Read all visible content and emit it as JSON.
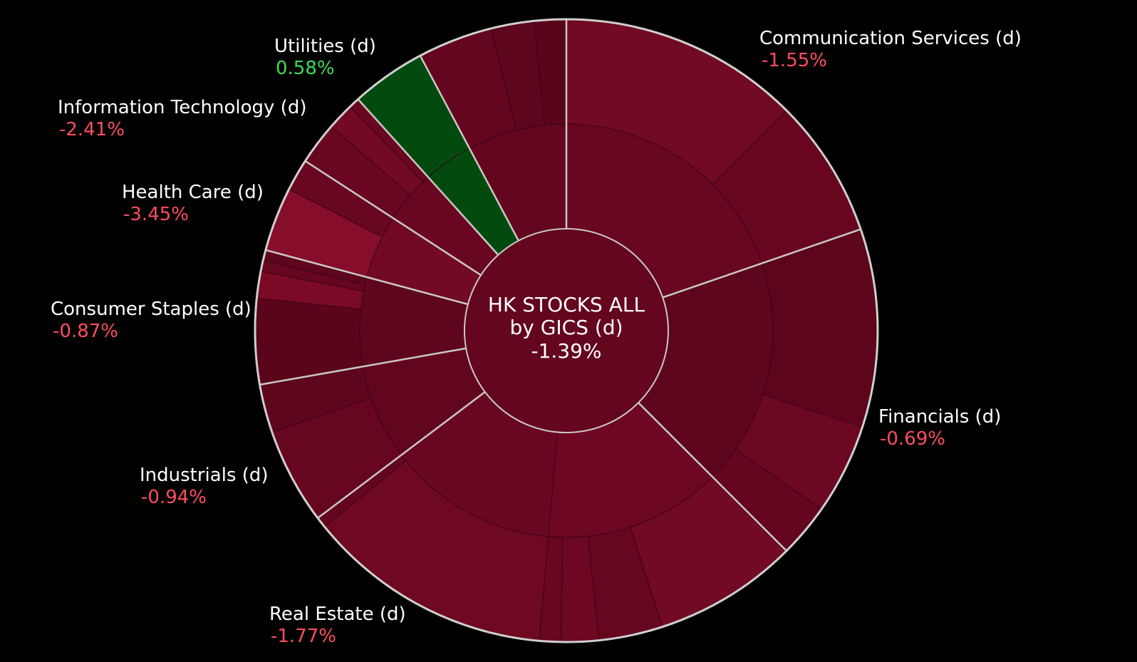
{
  "chart_data": {
    "type": "sunburst",
    "center": {
      "line1": "HK STOCKS ALL",
      "line2": "by GICS (d)",
      "value": "-1.39%"
    },
    "colors": {
      "background": "#000000",
      "negative_text": "#ff4d5e",
      "positive_text": "#3ddc5a",
      "center_fill": "#64061e",
      "separator": "#c8c8c8",
      "outer_ring": "#cfcfcf"
    },
    "sectors": [
      {
        "name": "Communication Services (d)",
        "pct": "-1.55%",
        "change": -1.55,
        "start_deg": 0,
        "end_deg": 71,
        "label_side": "right",
        "color": "#690720",
        "mid_color": "#6a0720",
        "mid": [
          {
            "start_deg": 0,
            "end_deg": 71,
            "color": "#6a0720"
          }
        ],
        "outer": [
          {
            "start_deg": 0,
            "end_deg": 45,
            "color": "#710a22"
          },
          {
            "start_deg": 45,
            "end_deg": 71,
            "color": "#68061f"
          }
        ]
      },
      {
        "name": "Financials (d)",
        "pct": "-0.69%",
        "change": -0.69,
        "start_deg": 71,
        "end_deg": 135,
        "label_side": "right",
        "color": "#5e061c",
        "mid_color": "#5e061c",
        "mid": [
          {
            "start_deg": 71,
            "end_deg": 135,
            "color": "#5e061c"
          }
        ],
        "outer": [
          {
            "start_deg": 71,
            "end_deg": 108,
            "color": "#5c051b"
          },
          {
            "start_deg": 108,
            "end_deg": 125,
            "color": "#6c0821"
          },
          {
            "start_deg": 125,
            "end_deg": 135,
            "color": "#64061e"
          }
        ]
      },
      {
        "name": "Real Estate (d)",
        "pct": "-1.77%",
        "change": -1.77,
        "start_deg": 135,
        "end_deg": 233,
        "label_side": "bottom",
        "color": "#6c0821",
        "mid_color": "#6c0821",
        "mid": [
          {
            "start_deg": 135,
            "end_deg": 185,
            "color": "#6e0822"
          },
          {
            "start_deg": 185,
            "end_deg": 233,
            "color": "#690720"
          }
        ],
        "outer": [
          {
            "start_deg": 135,
            "end_deg": 162,
            "color": "#710a22"
          },
          {
            "start_deg": 162,
            "end_deg": 174,
            "color": "#66061f"
          },
          {
            "start_deg": 174,
            "end_deg": 181,
            "color": "#6e0822"
          },
          {
            "start_deg": 181,
            "end_deg": 185,
            "color": "#690720"
          },
          {
            "start_deg": 185,
            "end_deg": 231,
            "color": "#6f0922"
          },
          {
            "start_deg": 231,
            "end_deg": 233,
            "color": "#64061e"
          }
        ]
      },
      {
        "name": "Industrials (d)",
        "pct": "-0.94%",
        "change": -0.94,
        "start_deg": 233,
        "end_deg": 260,
        "label_side": "left",
        "color": "#62061e",
        "mid_color": "#62061e",
        "mid": [
          {
            "start_deg": 233,
            "end_deg": 260,
            "color": "#62061e"
          }
        ],
        "outer": [
          {
            "start_deg": 233,
            "end_deg": 251,
            "color": "#66061f"
          },
          {
            "start_deg": 251,
            "end_deg": 260,
            "color": "#5e061c"
          }
        ]
      },
      {
        "name": "Consumer Staples (d)",
        "pct": "-0.87%",
        "change": -0.87,
        "start_deg": 260,
        "end_deg": 285,
        "label_side": "left",
        "color": "#5e061c",
        "mid_color": "#5e061c",
        "mid": [
          {
            "start_deg": 260,
            "end_deg": 285,
            "color": "#5e061c"
          }
        ],
        "outer": [
          {
            "start_deg": 260,
            "end_deg": 276,
            "color": "#5a051a"
          },
          {
            "start_deg": 276,
            "end_deg": 281,
            "color": "#7a0a25"
          },
          {
            "start_deg": 281,
            "end_deg": 283,
            "color": "#66061f"
          },
          {
            "start_deg": 283,
            "end_deg": 285,
            "color": "#5e061c"
          }
        ]
      },
      {
        "name": "Health Care (d)",
        "pct": "-3.45%",
        "change": -3.45,
        "start_deg": 285,
        "end_deg": 303,
        "label_side": "left",
        "color": "#730a23",
        "mid_color": "#730a23",
        "mid": [
          {
            "start_deg": 285,
            "end_deg": 303,
            "color": "#730a23"
          }
        ],
        "outer": [
          {
            "start_deg": 285,
            "end_deg": 297,
            "color": "#860e2a"
          },
          {
            "start_deg": 297,
            "end_deg": 303,
            "color": "#6a0720"
          }
        ]
      },
      {
        "name": "Information Technology (d)",
        "pct": "-2.41%",
        "change": -2.41,
        "start_deg": 303,
        "end_deg": 318,
        "label_side": "left",
        "color": "#6a0720",
        "mid_color": "#6a0720",
        "mid": [
          {
            "start_deg": 303,
            "end_deg": 318,
            "color": "#6a0720"
          }
        ],
        "outer": [
          {
            "start_deg": 303,
            "end_deg": 311,
            "color": "#690720"
          },
          {
            "start_deg": 311,
            "end_deg": 316,
            "color": "#730a23"
          },
          {
            "start_deg": 316,
            "end_deg": 318,
            "color": "#690720"
          }
        ]
      },
      {
        "name": "Utilities (d)",
        "pct": "0.58%",
        "change": 0.58,
        "start_deg": 318,
        "end_deg": 332,
        "label_side": "left",
        "color": "#034a0d",
        "mid_color": "#034a0d",
        "mid": [
          {
            "start_deg": 318,
            "end_deg": 332,
            "color": "#024a0e"
          }
        ],
        "outer": [
          {
            "start_deg": 318,
            "end_deg": 332,
            "color": "#034a0e"
          }
        ]
      },
      {
        "name": "",
        "pct": "",
        "change": null,
        "start_deg": 332,
        "end_deg": 360,
        "label_side": "none",
        "color": "#64061e",
        "mid_color": "#64061e",
        "mid": [
          {
            "start_deg": 332,
            "end_deg": 360,
            "color": "#64061e"
          }
        ],
        "outer": [
          {
            "start_deg": 332,
            "end_deg": 346,
            "color": "#64061e"
          },
          {
            "start_deg": 346,
            "end_deg": 354,
            "color": "#5e061c"
          },
          {
            "start_deg": 354,
            "end_deg": 360,
            "color": "#5a051a"
          }
        ]
      }
    ],
    "labels": [
      {
        "sector": "Communication Services (d)",
        "name": "Communication Services (d)",
        "pct": "-1.55%",
        "positive": false
      },
      {
        "sector": "Financials (d)",
        "name": "Financials (d)",
        "pct": "-0.69%",
        "positive": false
      },
      {
        "sector": "Real Estate (d)",
        "name": "Real Estate (d)",
        "pct": "-1.77%",
        "positive": false
      },
      {
        "sector": "Industrials (d)",
        "name": "Industrials (d)",
        "pct": "-0.94%",
        "positive": false
      },
      {
        "sector": "Consumer Staples (d)",
        "name": "Consumer Staples (d)",
        "pct": "-0.87%",
        "positive": false
      },
      {
        "sector": "Health Care (d)",
        "name": "Health Care (d)",
        "pct": "-3.45%",
        "positive": false
      },
      {
        "sector": "Information Technology (d)",
        "name": "Information Technology (d)",
        "pct": "-2.41%",
        "positive": false
      },
      {
        "sector": "Utilities (d)",
        "name": "Utilities (d)",
        "pct": "0.58%",
        "positive": true
      }
    ]
  }
}
